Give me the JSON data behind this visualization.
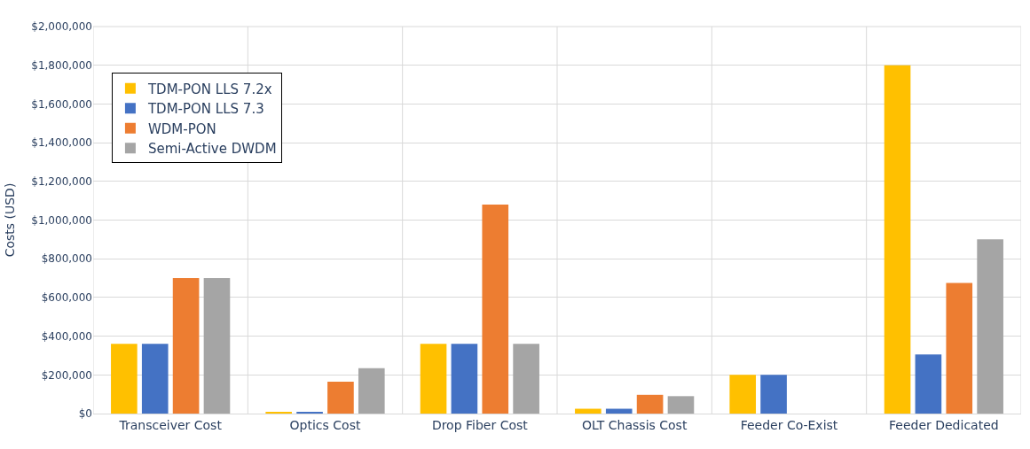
{
  "chart_data": {
    "type": "bar",
    "ylabel": "Costs (USD)",
    "categories": [
      "Transceiver Cost",
      "Optics Cost",
      "Drop Fiber Cost",
      "OLT Chassis Cost",
      "Feeder Co-Exist",
      "Feeder Dedicated"
    ],
    "series": [
      {
        "name": "TDM-PON LLS 7.2x",
        "color": "#ffc000",
        "values": [
          360000,
          5000,
          360000,
          25000,
          200000,
          1800000
        ]
      },
      {
        "name": "TDM-PON LLS 7.3",
        "color": "#4472c4",
        "values": [
          360000,
          5000,
          360000,
          25000,
          200000,
          305000
        ]
      },
      {
        "name": "WDM-PON",
        "color": "#ed7d31",
        "values": [
          700000,
          165000,
          1080000,
          97000,
          null,
          675000
        ]
      },
      {
        "name": "Semi-Active DWDM",
        "color": "#a5a5a5",
        "values": [
          700000,
          235000,
          360000,
          90000,
          null,
          900000
        ]
      }
    ],
    "ylim": [
      0,
      2000000
    ],
    "yticks": [
      {
        "value": 0,
        "label": "$0"
      },
      {
        "value": 200000,
        "label": "$200,000"
      },
      {
        "value": 400000,
        "label": "$400,000"
      },
      {
        "value": 600000,
        "label": "$600,000"
      },
      {
        "value": 800000,
        "label": "$800,000"
      },
      {
        "value": 1000000,
        "label": "$1,000,000"
      },
      {
        "value": 1200000,
        "label": "$1,200,000"
      },
      {
        "value": 1400000,
        "label": "$1,400,000"
      },
      {
        "value": 1600000,
        "label": "$1,600,000"
      },
      {
        "value": 1800000,
        "label": "$1,800,000"
      },
      {
        "value": 2000000,
        "label": "$2,000,000"
      }
    ],
    "grid": true,
    "legend": "top left"
  }
}
